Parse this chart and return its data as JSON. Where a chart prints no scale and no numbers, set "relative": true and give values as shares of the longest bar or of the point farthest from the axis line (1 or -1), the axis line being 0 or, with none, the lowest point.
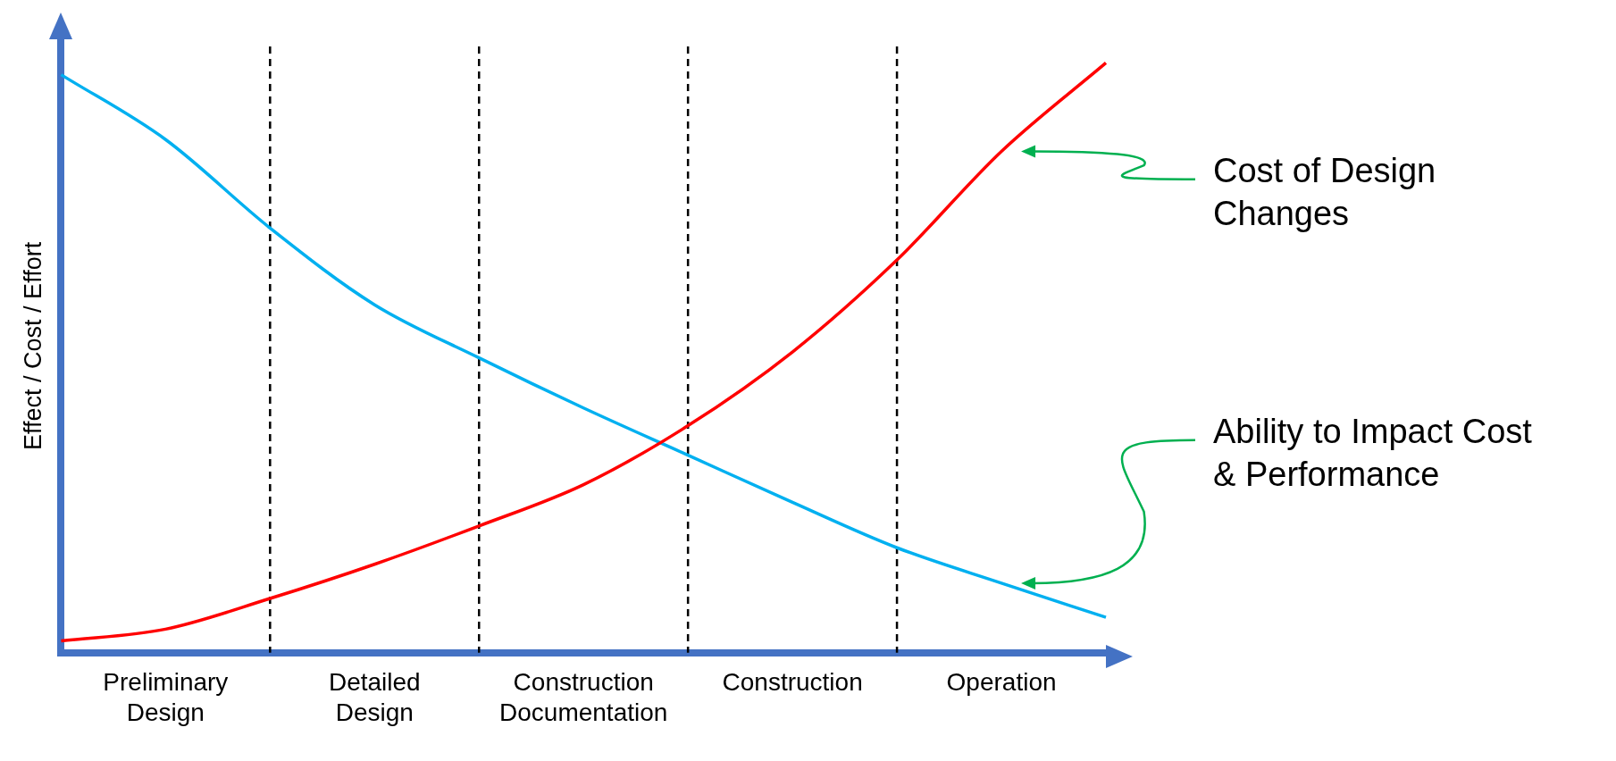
{
  "chart_data": {
    "type": "line",
    "relative": true,
    "ylabel": "Effect / Cost / Effort",
    "grid": "x",
    "categories": [
      null,
      "Preliminary Design",
      null,
      "Detailed Design",
      null,
      "Construction Documentation",
      null,
      "Construction",
      null,
      "Operation",
      null
    ],
    "series": [
      {
        "name": "Cost of Design Changes",
        "color": "#ff0000",
        "values": [
          0.02,
          0.04,
          0.092,
          0.15,
          0.215,
          0.285,
          0.385,
          0.51,
          0.666,
          0.85,
          1
        ]
      },
      {
        "name": "Ability to Impact Cost & Performance",
        "color": "#00b0f0",
        "values": [
          0.98,
          0.87,
          0.72,
          0.59,
          0.5,
          0.415,
          0.335,
          0.255,
          0.178,
          0.118,
          0.06
        ]
      }
    ]
  }
}
